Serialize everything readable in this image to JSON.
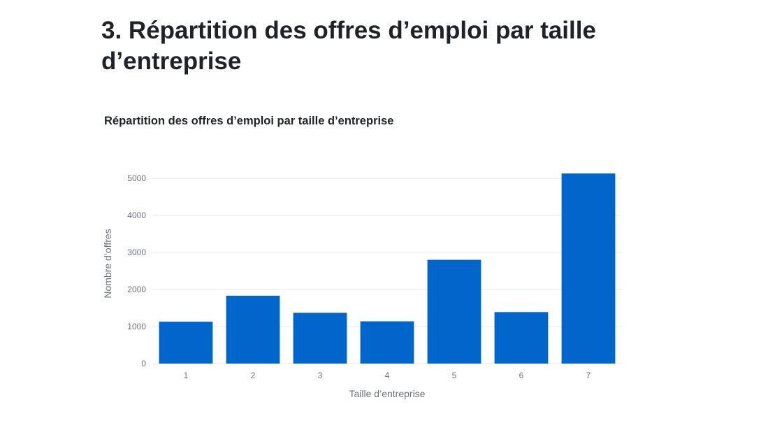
{
  "page": {
    "heading": "3. Répartition des offres d’emploi par taille d’entreprise"
  },
  "chart_data": {
    "type": "bar",
    "title": "Répartition des offres d’emploi par taille d’entreprise",
    "xlabel": "Taille d’entreprise",
    "ylabel": "Nombre d’offres",
    "categories": [
      "1",
      "2",
      "3",
      "4",
      "5",
      "6",
      "7"
    ],
    "values": [
      1130,
      1830,
      1370,
      1140,
      2800,
      1390,
      5130
    ],
    "ylim": [
      0,
      5000
    ],
    "yticks": [
      0,
      1000,
      2000,
      3000,
      4000,
      5000
    ],
    "grid": true,
    "legend": "none",
    "bar_color": "#0066cc",
    "grid_color": "#e5e7eb",
    "tick_color": "#6b7280"
  }
}
